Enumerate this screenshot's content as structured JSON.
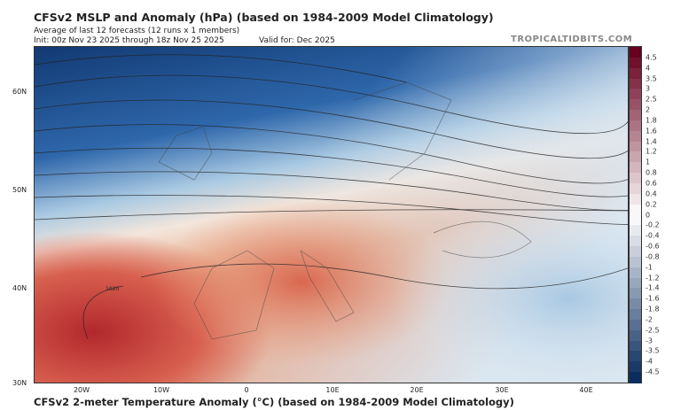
{
  "header": {
    "title": "CFSv2 MSLP and Anomaly (hPa) (based on 1984-2009 Model Climatology)",
    "subtitle": "Average of last 12 forecasts (12 runs x 1 members)",
    "init": "Init: 00z Nov 23 2025 through 18z Nov 25 2025",
    "valid": "Valid for: Dec 2025",
    "brand": "TROPICALTIDBITS.COM"
  },
  "map": {
    "lat_labels": [
      "60N",
      "50N",
      "40N",
      "30N"
    ],
    "lon_labels": [
      "20W",
      "10W",
      "0",
      "10E",
      "20E",
      "30E",
      "40E"
    ],
    "isobar_label": "1020"
  },
  "colorbar": {
    "labels": [
      "4.5",
      "4",
      "3.5",
      "3",
      "2.5",
      "2",
      "1.8",
      "1.6",
      "1.4",
      "1.2",
      "1",
      "0.8",
      "0.6",
      "0.4",
      "0.2",
      "0",
      "-0.2",
      "-0.4",
      "-0.6",
      "-0.8",
      "-1",
      "-1.2",
      "-1.4",
      "-1.6",
      "-1.8",
      "-2",
      "-2.5",
      "-3",
      "-3.5",
      "-4",
      "-4.5"
    ],
    "warm": "#67001f",
    "neutral": "#ffffff",
    "cold": "#0b2c5e"
  },
  "footer": {
    "title": "CFSv2 2-meter Temperature Anomaly (°C) (based on 1984-2009 Model Climatology)"
  }
}
